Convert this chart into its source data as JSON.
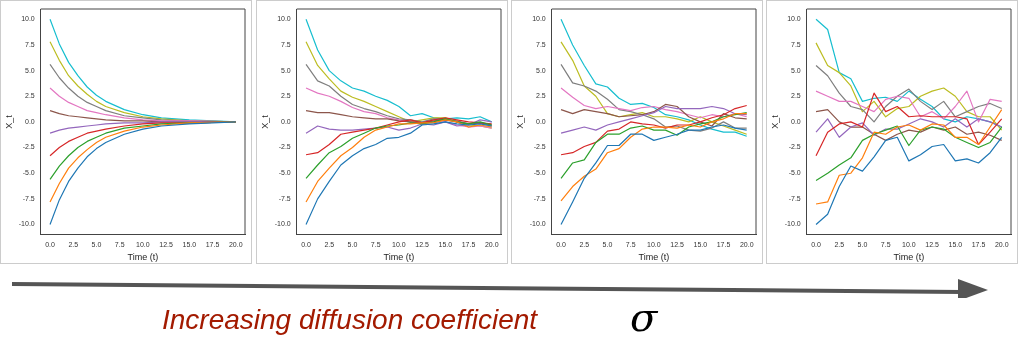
{
  "chart_data": [
    {
      "type": "line",
      "xlabel": "Time (t)",
      "ylabel": "X_t",
      "x": [
        0,
        1,
        2,
        3,
        4,
        5,
        6,
        8,
        10,
        12,
        15,
        20
      ],
      "xlim": [
        -1,
        21
      ],
      "ylim": [
        -11,
        11
      ],
      "xticks": [
        {
          "value": 0,
          "label": "0.0"
        },
        {
          "value": 2.5,
          "label": "2.5"
        },
        {
          "value": 5,
          "label": "5.0"
        },
        {
          "value": 7.5,
          "label": "7.5"
        },
        {
          "value": 10,
          "label": "10.0"
        },
        {
          "value": 12.5,
          "label": "12.5"
        },
        {
          "value": 15,
          "label": "15.0"
        },
        {
          "value": 17.5,
          "label": "17.5"
        },
        {
          "value": 20,
          "label": "20.0"
        }
      ],
      "yticks": [
        {
          "value": -10,
          "label": "-10.0"
        },
        {
          "value": -7.5,
          "label": "-7.5"
        },
        {
          "value": -5,
          "label": "-5.0"
        },
        {
          "value": -2.5,
          "label": "-2.5"
        },
        {
          "value": 0,
          "label": "0.0"
        },
        {
          "value": 2.5,
          "label": "2.5"
        },
        {
          "value": 5,
          "label": "5.0"
        },
        {
          "value": 7.5,
          "label": "7.5"
        },
        {
          "value": 10,
          "label": "10.0"
        }
      ],
      "grid": false,
      "legend": false,
      "marker": "none",
      "line_style": "solid",
      "annotations": [
        "Increasing diffusion coefficient",
        "σ"
      ],
      "series": [
        {
          "color": "#1f77b4",
          "values": [
            -10,
            -7.6,
            -5.8,
            -4.5,
            -3.4,
            -2.6,
            -2.0,
            -1.2,
            -0.7,
            -0.4,
            -0.2,
            0.0
          ]
        },
        {
          "color": "#ff7f0e",
          "values": [
            -7.8,
            -6.0,
            -4.5,
            -3.5,
            -2.7,
            -2.0,
            -1.5,
            -0.9,
            -0.5,
            -0.3,
            -0.1,
            0.0
          ]
        },
        {
          "color": "#2ca02c",
          "values": [
            -5.6,
            -4.3,
            -3.3,
            -2.5,
            -1.9,
            -1.5,
            -1.1,
            -0.6,
            -0.4,
            -0.2,
            -0.1,
            0.0
          ]
        },
        {
          "color": "#d62728",
          "values": [
            -3.3,
            -2.5,
            -1.9,
            -1.5,
            -1.1,
            -0.9,
            -0.7,
            -0.4,
            -0.2,
            -0.1,
            -0.1,
            0.0
          ]
        },
        {
          "color": "#9467bd",
          "values": [
            -1.1,
            -0.8,
            -0.6,
            -0.5,
            -0.4,
            -0.3,
            -0.2,
            -0.1,
            -0.1,
            0.0,
            0.0,
            0.0
          ]
        },
        {
          "color": "#8c564b",
          "values": [
            1.1,
            0.8,
            0.6,
            0.5,
            0.4,
            0.3,
            0.2,
            0.1,
            0.1,
            0.0,
            0.0,
            0.0
          ]
        },
        {
          "color": "#e377c2",
          "values": [
            3.3,
            2.5,
            1.9,
            1.5,
            1.1,
            0.9,
            0.7,
            0.4,
            0.2,
            0.1,
            0.1,
            0.0
          ]
        },
        {
          "color": "#7f7f7f",
          "values": [
            5.6,
            4.3,
            3.3,
            2.5,
            1.9,
            1.5,
            1.1,
            0.6,
            0.4,
            0.2,
            0.1,
            0.0
          ]
        },
        {
          "color": "#bcbd22",
          "values": [
            7.8,
            6.0,
            4.5,
            3.5,
            2.7,
            2.0,
            1.5,
            0.9,
            0.5,
            0.3,
            0.1,
            0.0
          ]
        },
        {
          "color": "#17becf",
          "values": [
            10,
            7.6,
            5.8,
            4.5,
            3.4,
            2.6,
            2.0,
            1.2,
            0.7,
            0.4,
            0.2,
            0.0
          ]
        }
      ]
    },
    {
      "type": "line",
      "xlabel": "Time (t)",
      "ylabel": "X_t",
      "x": [
        0,
        1.25,
        2.5,
        3.75,
        5,
        6.25,
        7.5,
        8.75,
        10,
        11.25,
        12.5,
        13.75,
        15,
        16.25,
        17.5,
        18.75,
        20
      ],
      "xlim": [
        -1,
        21
      ],
      "ylim": [
        -11,
        11
      ],
      "xticks": [
        {
          "value": 0,
          "label": "0.0"
        },
        {
          "value": 2.5,
          "label": "2.5"
        },
        {
          "value": 5,
          "label": "5.0"
        },
        {
          "value": 7.5,
          "label": "7.5"
        },
        {
          "value": 10,
          "label": "10.0"
        },
        {
          "value": 12.5,
          "label": "12.5"
        },
        {
          "value": 15,
          "label": "15.0"
        },
        {
          "value": 17.5,
          "label": "17.5"
        },
        {
          "value": 20,
          "label": "20.0"
        }
      ],
      "yticks": [
        {
          "value": -10,
          "label": "-10.0"
        },
        {
          "value": -7.5,
          "label": "-7.5"
        },
        {
          "value": -5,
          "label": "-5.0"
        },
        {
          "value": -2.5,
          "label": "-2.5"
        },
        {
          "value": 0,
          "label": "0.0"
        },
        {
          "value": 2.5,
          "label": "2.5"
        },
        {
          "value": 5,
          "label": "5.0"
        },
        {
          "value": 7.5,
          "label": "7.5"
        },
        {
          "value": 10,
          "label": "10.0"
        }
      ],
      "grid": false,
      "legend": false,
      "marker": "none",
      "line_style": "solid",
      "series": [
        {
          "color": "#1f77b4",
          "values": [
            -10,
            -7.5,
            -5.8,
            -4.2,
            -3.3,
            -2.6,
            -2.2,
            -1.6,
            -1.5,
            -1.1,
            -0.3,
            -0.2,
            0.0,
            -0.2,
            -0.3,
            -0.2,
            -0.4
          ]
        },
        {
          "color": "#ff7f0e",
          "values": [
            -7.8,
            -5.8,
            -4.5,
            -3.3,
            -2.5,
            -1.5,
            -0.8,
            -0.5,
            -0.2,
            -0.2,
            -0.1,
            -0.1,
            0.2,
            0.0,
            -0.5,
            -0.3,
            -0.5
          ]
        },
        {
          "color": "#2ca02c",
          "values": [
            -5.5,
            -4.2,
            -3.0,
            -2.4,
            -1.6,
            -1.1,
            -0.6,
            -0.4,
            -0.3,
            -0.1,
            -0.2,
            0.0,
            0.3,
            0.0,
            -0.2,
            0.0,
            -0.3
          ]
        },
        {
          "color": "#d62728",
          "values": [
            -3.2,
            -3.0,
            -2.2,
            -1.2,
            -1.0,
            -0.8,
            -0.6,
            -0.3,
            0.0,
            0.2,
            -0.1,
            0.2,
            0.4,
            0.2,
            0.0,
            -0.1,
            -0.2
          ]
        },
        {
          "color": "#9467bd",
          "values": [
            -1.1,
            -0.4,
            -0.7,
            -0.8,
            -0.8,
            -0.7,
            -0.6,
            -0.5,
            -0.8,
            -0.6,
            -0.2,
            -0.3,
            0.0,
            -0.4,
            -0.3,
            0.2,
            0.0
          ]
        },
        {
          "color": "#8c564b",
          "values": [
            1.1,
            0.9,
            0.9,
            0.7,
            0.5,
            0.4,
            0.3,
            0.3,
            0.1,
            0.0,
            -0.1,
            0.1,
            0.2,
            0.0,
            -0.2,
            -0.1,
            -0.3
          ]
        },
        {
          "color": "#e377c2",
          "values": [
            3.3,
            2.8,
            2.5,
            2.0,
            1.4,
            1.0,
            0.8,
            0.4,
            0.2,
            0.0,
            -0.2,
            0.0,
            0.0,
            -0.3,
            -0.5,
            -0.4,
            -0.6
          ]
        },
        {
          "color": "#7f7f7f",
          "values": [
            5.6,
            4.0,
            3.5,
            2.5,
            1.7,
            1.3,
            1.0,
            0.6,
            0.3,
            0.2,
            0.0,
            0.3,
            0.2,
            0.1,
            -0.2,
            -0.1,
            -0.4
          ]
        },
        {
          "color": "#bcbd22",
          "values": [
            7.8,
            5.5,
            4.2,
            3.0,
            2.4,
            2.0,
            1.5,
            1.0,
            0.5,
            0.0,
            0.2,
            0.4,
            0.4,
            0.0,
            -0.3,
            -0.4,
            -0.6
          ]
        },
        {
          "color": "#17becf",
          "values": [
            10,
            7.0,
            5.0,
            4.0,
            3.3,
            3.0,
            2.5,
            2.1,
            1.5,
            0.6,
            0.8,
            0.4,
            0.3,
            0.4,
            0.3,
            0.5,
            0.0
          ]
        }
      ]
    },
    {
      "type": "line",
      "xlabel": "Time (t)",
      "ylabel": "X_t",
      "x": [
        0,
        1.25,
        2.5,
        3.75,
        5,
        6.25,
        7.5,
        8.75,
        10,
        11.25,
        12.5,
        13.75,
        15,
        16.25,
        17.5,
        18.75,
        20
      ],
      "xlim": [
        -1,
        21
      ],
      "ylim": [
        -11,
        11
      ],
      "xticks": [
        {
          "value": 0,
          "label": "0.0"
        },
        {
          "value": 2.5,
          "label": "2.5"
        },
        {
          "value": 5,
          "label": "5.0"
        },
        {
          "value": 7.5,
          "label": "7.5"
        },
        {
          "value": 10,
          "label": "10.0"
        },
        {
          "value": 12.5,
          "label": "12.5"
        },
        {
          "value": 15,
          "label": "15.0"
        },
        {
          "value": 17.5,
          "label": "17.5"
        },
        {
          "value": 20,
          "label": "20.0"
        }
      ],
      "yticks": [
        {
          "value": -10,
          "label": "-10.0"
        },
        {
          "value": -7.5,
          "label": "-7.5"
        },
        {
          "value": -5,
          "label": "-5.0"
        },
        {
          "value": -2.5,
          "label": "-2.5"
        },
        {
          "value": 0,
          "label": "0.0"
        },
        {
          "value": 2.5,
          "label": "2.5"
        },
        {
          "value": 5,
          "label": "5.0"
        },
        {
          "value": 7.5,
          "label": "7.5"
        },
        {
          "value": 10,
          "label": "10.0"
        }
      ],
      "grid": false,
      "legend": false,
      "marker": "none",
      "line_style": "solid",
      "series": [
        {
          "color": "#1f77b4",
          "values": [
            -10,
            -7.8,
            -5.5,
            -4.0,
            -2.3,
            -2.3,
            -1.2,
            -1.2,
            -1.8,
            -1.5,
            -1.2,
            -0.8,
            -0.8,
            -0.5,
            -0.3,
            -0.6,
            -0.8
          ]
        },
        {
          "color": "#ff7f0e",
          "values": [
            -7.7,
            -6.3,
            -5.3,
            -4.6,
            -3.0,
            -2.6,
            -1.5,
            -0.7,
            -0.5,
            -0.5,
            -0.6,
            -0.3,
            -0.5,
            0.0,
            0.3,
            0.8,
            0.8
          ]
        },
        {
          "color": "#2ca02c",
          "values": [
            -5.5,
            -4.0,
            -3.7,
            -2.0,
            -1.2,
            -1.2,
            -0.6,
            -0.4,
            -0.8,
            -0.8,
            -1.3,
            -0.5,
            -0.2,
            0.0,
            0.5,
            0.7,
            0.9
          ]
        },
        {
          "color": "#d62728",
          "values": [
            -3.2,
            -3.0,
            -2.4,
            -2.0,
            -0.9,
            -0.7,
            0.0,
            -0.2,
            -0.3,
            -0.6,
            -0.3,
            -0.3,
            0.0,
            0.4,
            0.7,
            1.3,
            1.6
          ]
        },
        {
          "color": "#9467bd",
          "values": [
            -1.1,
            -0.8,
            -0.5,
            -0.8,
            -0.3,
            0.0,
            0.3,
            0.6,
            0.9,
            1.5,
            1.3,
            1.3,
            1.3,
            1.5,
            1.3,
            0.8,
            0.7
          ]
        },
        {
          "color": "#8c564b",
          "values": [
            1.2,
            0.8,
            1.2,
            1.0,
            0.8,
            0.5,
            0.6,
            0.7,
            1.0,
            1.7,
            1.5,
            0.5,
            0.0,
            -0.4,
            0.8,
            0.4,
            0.3
          ]
        },
        {
          "color": "#e377c2",
          "values": [
            3.3,
            2.4,
            1.6,
            1.3,
            1.5,
            1.3,
            1.1,
            1.4,
            1.5,
            1.2,
            1.0,
            0.7,
            0.4,
            0.7,
            0.5,
            0.8,
            0.5
          ]
        },
        {
          "color": "#7f7f7f",
          "values": [
            5.6,
            3.8,
            3.5,
            3.0,
            2.2,
            1.2,
            1.0,
            0.7,
            0.3,
            -0.5,
            -0.4,
            -0.8,
            -0.9,
            -0.6,
            0.0,
            -0.6,
            -0.6
          ]
        },
        {
          "color": "#bcbd22",
          "values": [
            7.8,
            6.0,
            3.5,
            2.5,
            0.8,
            0.5,
            0.7,
            0.9,
            0.5,
            0.5,
            0.3,
            0.0,
            0.5,
            0.0,
            -0.4,
            -0.8,
            -1.2
          ]
        },
        {
          "color": "#17becf",
          "values": [
            10,
            7.5,
            5.5,
            3.7,
            3.4,
            2.3,
            1.7,
            1.8,
            1.4,
            0.7,
            0.5,
            0.2,
            -0.3,
            -0.7,
            -1.0,
            -1.0,
            -1.4
          ]
        }
      ]
    },
    {
      "type": "line",
      "xlabel": "Time (t)",
      "ylabel": "X_t",
      "x": [
        0,
        1.25,
        2.5,
        3.75,
        5,
        6.25,
        7.5,
        8.75,
        10,
        11.25,
        12.5,
        13.75,
        15,
        16.25,
        17.5,
        18.75,
        20
      ],
      "xlim": [
        -1,
        21
      ],
      "ylim": [
        -11,
        11
      ],
      "xticks": [
        {
          "value": 0,
          "label": "0.0"
        },
        {
          "value": 2.5,
          "label": "2.5"
        },
        {
          "value": 5,
          "label": "5.0"
        },
        {
          "value": 7.5,
          "label": "7.5"
        },
        {
          "value": 10,
          "label": "10.0"
        },
        {
          "value": 12.5,
          "label": "12.5"
        },
        {
          "value": 15,
          "label": "15.0"
        },
        {
          "value": 17.5,
          "label": "17.5"
        },
        {
          "value": 20,
          "label": "20.0"
        }
      ],
      "yticks": [
        {
          "value": -10,
          "label": "-10.0"
        },
        {
          "value": -7.5,
          "label": "-7.5"
        },
        {
          "value": -5,
          "label": "-5.0"
        },
        {
          "value": -2.5,
          "label": "-2.5"
        },
        {
          "value": 0,
          "label": "0.0"
        },
        {
          "value": 2.5,
          "label": "2.5"
        },
        {
          "value": 5,
          "label": "5.0"
        },
        {
          "value": 7.5,
          "label": "7.5"
        },
        {
          "value": 10,
          "label": "10.0"
        }
      ],
      "grid": false,
      "legend": false,
      "marker": "none",
      "line_style": "solid",
      "series": [
        {
          "color": "#1f77b4",
          "values": [
            -10,
            -9.0,
            -6.3,
            -4.3,
            -4.8,
            -3.4,
            -1.8,
            -1.5,
            -3.8,
            -3.2,
            -2.4,
            -2.2,
            -3.8,
            -3.6,
            -4.0,
            -3.0,
            -1.5
          ]
        },
        {
          "color": "#ff7f0e",
          "values": [
            -8.0,
            -7.8,
            -5.2,
            -5.0,
            -3.5,
            -1.0,
            -1.2,
            -0.5,
            -0.3,
            -0.8,
            -0.2,
            -0.3,
            -1.5,
            -1.5,
            -2.2,
            -0.5,
            1.2
          ]
        },
        {
          "color": "#2ca02c",
          "values": [
            -5.7,
            -5.0,
            -4.2,
            -3.5,
            -1.8,
            -1.2,
            -0.8,
            -0.4,
            -2.3,
            -0.8,
            -0.5,
            -0.7,
            -1.5,
            -2.0,
            -2.5,
            -2.0,
            -0.5
          ]
        },
        {
          "color": "#d62728",
          "values": [
            -3.3,
            -1.0,
            -0.2,
            0.0,
            -0.5,
            2.8,
            1.0,
            1.5,
            0.5,
            0.6,
            0.5,
            0.5,
            0.5,
            0.3,
            -2.2,
            -1.0,
            0.3
          ]
        },
        {
          "color": "#9467bd",
          "values": [
            -1.0,
            0.3,
            -1.5,
            -0.5,
            -0.1,
            -1.3,
            -0.7,
            -0.7,
            -0.2,
            0.3,
            0.0,
            -0.5,
            0.3,
            -0.5,
            0.3,
            0.0,
            -0.5
          ]
        },
        {
          "color": "#8c564b",
          "values": [
            1.0,
            1.2,
            0.0,
            -0.5,
            -0.5,
            -1.2,
            -1.8,
            -1.2,
            -0.8,
            -1.0,
            -0.5,
            -0.8,
            -0.5,
            -1.2,
            -1.0,
            -1.3,
            -1.8
          ]
        },
        {
          "color": "#e377c2",
          "values": [
            3.0,
            2.5,
            2.0,
            2.0,
            1.5,
            1.0,
            2.2,
            2.5,
            2.3,
            0.5,
            1.0,
            0.3,
            1.5,
            3.0,
            0.0,
            2.2,
            2.0
          ]
        },
        {
          "color": "#7f7f7f",
          "values": [
            5.5,
            4.5,
            2.8,
            1.5,
            1.2,
            0.0,
            1.5,
            2.5,
            3.2,
            2.0,
            1.2,
            2.0,
            0.5,
            1.0,
            1.5,
            1.8,
            1.3
          ]
        },
        {
          "color": "#bcbd22",
          "values": [
            7.7,
            5.5,
            4.8,
            3.5,
            1.0,
            2.0,
            0.5,
            1.3,
            1.5,
            2.5,
            3.0,
            3.3,
            2.5,
            1.0,
            0.5,
            0.5,
            -0.8
          ]
        },
        {
          "color": "#17becf",
          "values": [
            10,
            9.0,
            4.8,
            4.2,
            2.0,
            2.3,
            2.4,
            2.0,
            3.0,
            2.2,
            1.5,
            0.3,
            0.0,
            0.5,
            0.3,
            0.0,
            -0.5
          ]
        }
      ]
    }
  ]
}
